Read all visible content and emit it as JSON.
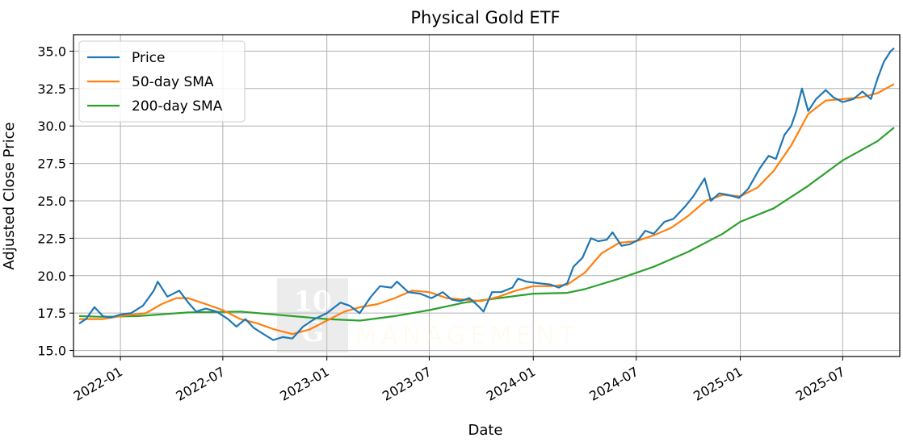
{
  "chart_data": {
    "type": "line",
    "title": "Physical Gold ETF",
    "xlabel": "Date",
    "ylabel": "Adjusted Close Price",
    "xlim": [
      "2021-10-10",
      "2025-10-10"
    ],
    "ylim": [
      14.6,
      36.1
    ],
    "x_ticks": [
      "2022-01",
      "2022-07",
      "2023-01",
      "2023-07",
      "2024-01",
      "2024-07",
      "2025-01",
      "2025-07"
    ],
    "y_ticks": [
      "15.0",
      "17.5",
      "20.0",
      "22.5",
      "25.0",
      "27.5",
      "30.0",
      "32.5",
      "35.0"
    ],
    "y_tick_values": [
      15.0,
      17.5,
      20.0,
      22.5,
      25.0,
      27.5,
      30.0,
      32.5,
      35.0
    ],
    "grid": true,
    "legend_position": "top-left",
    "series": [
      {
        "name": "Price",
        "color": "#1f77b4",
        "points": [
          [
            "2021-10-20",
            16.8
          ],
          [
            "2021-11-01",
            17.1
          ],
          [
            "2021-11-16",
            17.9
          ],
          [
            "2021-12-01",
            17.3
          ],
          [
            "2021-12-15",
            17.2
          ],
          [
            "2022-01-01",
            17.4
          ],
          [
            "2022-01-20",
            17.5
          ],
          [
            "2022-02-10",
            18.0
          ],
          [
            "2022-03-01",
            19.0
          ],
          [
            "2022-03-08",
            19.6
          ],
          [
            "2022-03-25",
            18.6
          ],
          [
            "2022-04-15",
            19.0
          ],
          [
            "2022-05-01",
            18.2
          ],
          [
            "2022-05-15",
            17.6
          ],
          [
            "2022-06-01",
            17.8
          ],
          [
            "2022-06-20",
            17.6
          ],
          [
            "2022-07-10",
            17.1
          ],
          [
            "2022-07-25",
            16.6
          ],
          [
            "2022-08-10",
            17.1
          ],
          [
            "2022-08-25",
            16.5
          ],
          [
            "2022-09-15",
            16.0
          ],
          [
            "2022-09-28",
            15.7
          ],
          [
            "2022-10-15",
            15.9
          ],
          [
            "2022-11-01",
            15.8
          ],
          [
            "2022-11-20",
            16.6
          ],
          [
            "2022-12-10",
            17.1
          ],
          [
            "2023-01-01",
            17.5
          ],
          [
            "2023-01-25",
            18.2
          ],
          [
            "2023-02-10",
            18.0
          ],
          [
            "2023-02-28",
            17.5
          ],
          [
            "2023-03-20",
            18.6
          ],
          [
            "2023-04-05",
            19.3
          ],
          [
            "2023-04-25",
            19.2
          ],
          [
            "2023-05-05",
            19.6
          ],
          [
            "2023-05-25",
            18.9
          ],
          [
            "2023-06-15",
            18.8
          ],
          [
            "2023-07-05",
            18.5
          ],
          [
            "2023-07-25",
            18.9
          ],
          [
            "2023-08-10",
            18.4
          ],
          [
            "2023-08-25",
            18.3
          ],
          [
            "2023-09-10",
            18.5
          ],
          [
            "2023-09-25",
            18.0
          ],
          [
            "2023-10-05",
            17.6
          ],
          [
            "2023-10-20",
            18.9
          ],
          [
            "2023-11-05",
            18.9
          ],
          [
            "2023-11-25",
            19.2
          ],
          [
            "2023-12-05",
            19.8
          ],
          [
            "2023-12-20",
            19.6
          ],
          [
            "2024-01-10",
            19.5
          ],
          [
            "2024-02-01",
            19.4
          ],
          [
            "2024-02-15",
            19.2
          ],
          [
            "2024-03-01",
            19.5
          ],
          [
            "2024-03-12",
            20.6
          ],
          [
            "2024-03-28",
            21.2
          ],
          [
            "2024-04-12",
            22.5
          ],
          [
            "2024-04-25",
            22.3
          ],
          [
            "2024-05-10",
            22.4
          ],
          [
            "2024-05-20",
            22.9
          ],
          [
            "2024-06-05",
            22.0
          ],
          [
            "2024-06-20",
            22.1
          ],
          [
            "2024-07-05",
            22.4
          ],
          [
            "2024-07-17",
            23.0
          ],
          [
            "2024-08-01",
            22.8
          ],
          [
            "2024-08-20",
            23.6
          ],
          [
            "2024-09-05",
            23.8
          ],
          [
            "2024-09-25",
            24.6
          ],
          [
            "2024-10-10",
            25.3
          ],
          [
            "2024-10-30",
            26.5
          ],
          [
            "2024-11-10",
            25.0
          ],
          [
            "2024-11-25",
            25.5
          ],
          [
            "2024-12-10",
            25.4
          ],
          [
            "2024-12-30",
            25.2
          ],
          [
            "2025-01-15",
            25.8
          ],
          [
            "2025-02-05",
            27.2
          ],
          [
            "2025-02-20",
            28.0
          ],
          [
            "2025-03-05",
            27.8
          ],
          [
            "2025-03-20",
            29.4
          ],
          [
            "2025-04-01",
            30.0
          ],
          [
            "2025-04-10",
            31.0
          ],
          [
            "2025-04-20",
            32.5
          ],
          [
            "2025-05-01",
            31.0
          ],
          [
            "2025-05-15",
            31.8
          ],
          [
            "2025-06-01",
            32.4
          ],
          [
            "2025-06-15",
            31.9
          ],
          [
            "2025-07-01",
            31.6
          ],
          [
            "2025-07-20",
            31.8
          ],
          [
            "2025-08-05",
            32.3
          ],
          [
            "2025-08-20",
            31.8
          ],
          [
            "2025-09-01",
            33.2
          ],
          [
            "2025-09-12",
            34.3
          ],
          [
            "2025-09-24",
            35.0
          ],
          [
            "2025-09-30",
            35.2
          ]
        ]
      },
      {
        "name": "50-day SMA",
        "color": "#ff7f0e",
        "points": [
          [
            "2021-10-20",
            17.1
          ],
          [
            "2021-12-01",
            17.1
          ],
          [
            "2022-01-01",
            17.3
          ],
          [
            "2022-02-15",
            17.5
          ],
          [
            "2022-03-15",
            18.1
          ],
          [
            "2022-04-10",
            18.5
          ],
          [
            "2022-04-30",
            18.5
          ],
          [
            "2022-06-01",
            18.1
          ],
          [
            "2022-07-01",
            17.7
          ],
          [
            "2022-08-01",
            17.1
          ],
          [
            "2022-09-01",
            16.8
          ],
          [
            "2022-10-01",
            16.4
          ],
          [
            "2022-11-01",
            16.1
          ],
          [
            "2022-12-01",
            16.4
          ],
          [
            "2023-01-01",
            17.0
          ],
          [
            "2023-02-01",
            17.6
          ],
          [
            "2023-03-01",
            17.9
          ],
          [
            "2023-04-01",
            18.1
          ],
          [
            "2023-05-01",
            18.5
          ],
          [
            "2023-06-01",
            19.0
          ],
          [
            "2023-07-01",
            18.9
          ],
          [
            "2023-08-01",
            18.5
          ],
          [
            "2023-09-01",
            18.4
          ],
          [
            "2023-10-01",
            18.3
          ],
          [
            "2023-11-01",
            18.6
          ],
          [
            "2023-12-01",
            19.0
          ],
          [
            "2024-01-01",
            19.3
          ],
          [
            "2024-02-01",
            19.3
          ],
          [
            "2024-03-01",
            19.4
          ],
          [
            "2024-04-01",
            20.2
          ],
          [
            "2024-05-01",
            21.5
          ],
          [
            "2024-06-01",
            22.2
          ],
          [
            "2024-07-01",
            22.3
          ],
          [
            "2024-08-01",
            22.7
          ],
          [
            "2024-09-01",
            23.2
          ],
          [
            "2024-10-01",
            24.0
          ],
          [
            "2024-11-01",
            25.0
          ],
          [
            "2024-12-01",
            25.4
          ],
          [
            "2025-01-01",
            25.3
          ],
          [
            "2025-02-01",
            25.9
          ],
          [
            "2025-03-01",
            27.0
          ],
          [
            "2025-04-01",
            28.7
          ],
          [
            "2025-05-01",
            30.8
          ],
          [
            "2025-06-01",
            31.7
          ],
          [
            "2025-07-01",
            31.8
          ],
          [
            "2025-08-01",
            31.9
          ],
          [
            "2025-09-01",
            32.2
          ],
          [
            "2025-09-30",
            32.8
          ]
        ]
      },
      {
        "name": "200-day SMA",
        "color": "#2ca02c",
        "points": [
          [
            "2021-10-20",
            17.3
          ],
          [
            "2021-12-01",
            17.25
          ],
          [
            "2022-02-01",
            17.3
          ],
          [
            "2022-05-01",
            17.55
          ],
          [
            "2022-08-01",
            17.6
          ],
          [
            "2022-11-01",
            17.3
          ],
          [
            "2023-01-01",
            17.1
          ],
          [
            "2023-03-01",
            17.0
          ],
          [
            "2023-05-01",
            17.3
          ],
          [
            "2023-07-01",
            17.7
          ],
          [
            "2023-09-01",
            18.2
          ],
          [
            "2023-11-01",
            18.5
          ],
          [
            "2024-01-01",
            18.8
          ],
          [
            "2024-03-01",
            18.85
          ],
          [
            "2024-04-01",
            19.1
          ],
          [
            "2024-06-01",
            19.8
          ],
          [
            "2024-08-01",
            20.6
          ],
          [
            "2024-10-01",
            21.6
          ],
          [
            "2024-12-01",
            22.8
          ],
          [
            "2025-01-01",
            23.6
          ],
          [
            "2025-03-01",
            24.5
          ],
          [
            "2025-05-01",
            26.0
          ],
          [
            "2025-07-01",
            27.7
          ],
          [
            "2025-09-01",
            29.0
          ],
          [
            "2025-09-30",
            29.9
          ]
        ]
      }
    ]
  }
}
